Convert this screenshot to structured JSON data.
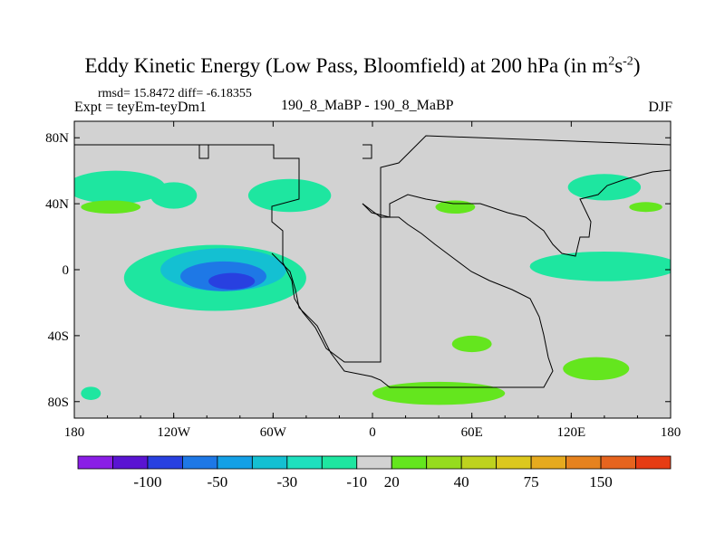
{
  "title": {
    "main": "Eddy Kinetic Energy (Low Pass, Bloomfield) at 200 hPa (in m",
    "sup1": "2",
    "mid": "s",
    "sup2": "-2",
    "end": ")"
  },
  "stats": "rmsd= 15.8472 diff= -6.18355",
  "expt_label": "Expt = teyEm-teyDm1",
  "center_label": "190_8_MaBP - 190_8_MaBP",
  "season_label": "DJF",
  "chart_data": {
    "type": "heatmap",
    "x_ticks": [
      {
        "value": -180,
        "label": "180"
      },
      {
        "value": -120,
        "label": "120W"
      },
      {
        "value": -60,
        "label": "60W"
      },
      {
        "value": 0,
        "label": "0"
      },
      {
        "value": 60,
        "label": "60E"
      },
      {
        "value": 120,
        "label": "120E"
      },
      {
        "value": 180,
        "label": "180"
      }
    ],
    "y_ticks": [
      {
        "value": 80,
        "label": "80N"
      },
      {
        "value": 40,
        "label": "40N"
      },
      {
        "value": 0,
        "label": "0"
      },
      {
        "value": -40,
        "label": "40S"
      },
      {
        "value": -80,
        "label": "80S"
      }
    ],
    "xlim": [
      -180,
      180
    ],
    "ylim": [
      -90,
      90
    ],
    "colorbar": {
      "colors": [
        "#8a1ee6",
        "#5a14d2",
        "#2840e0",
        "#1e78e6",
        "#14a0e6",
        "#14c0d2",
        "#1ee0be",
        "#1ee6a0",
        "#d2d2d2",
        "#64e61e",
        "#96dc1e",
        "#bed21e",
        "#dcc81e",
        "#e6aa1e",
        "#e6821e",
        "#e6641e",
        "#e63c14"
      ],
      "labels": [
        {
          "boundary": 2,
          "text": "-100"
        },
        {
          "boundary": 4,
          "text": "-50"
        },
        {
          "boundary": 6,
          "text": "-30"
        },
        {
          "boundary": 8,
          "text": "-10"
        },
        {
          "boundary": 9,
          "text": "20"
        },
        {
          "boundary": 11,
          "text": "40"
        },
        {
          "boundary": 13,
          "text": "75"
        },
        {
          "boundary": 15,
          "text": "150"
        }
      ]
    },
    "background_color": "#d2d2d2",
    "anomalies": [
      {
        "lon": -95,
        "lat": -5,
        "rx": 55,
        "ry": 20,
        "level": 1
      },
      {
        "lon": -90,
        "lat": 0,
        "rx": 38,
        "ry": 13,
        "level": 2
      },
      {
        "lon": -90,
        "lat": -4,
        "rx": 26,
        "ry": 9,
        "level": 3
      },
      {
        "lon": -85,
        "lat": -7,
        "rx": 14,
        "ry": 5,
        "level": 4
      },
      {
        "lon": -155,
        "lat": 50,
        "rx": 30,
        "ry": 10,
        "level": 1
      },
      {
        "lon": -120,
        "lat": 45,
        "rx": 14,
        "ry": 8,
        "level": 1
      },
      {
        "lon": -50,
        "lat": 45,
        "rx": 25,
        "ry": 10,
        "level": 1
      },
      {
        "lon": 140,
        "lat": 50,
        "rx": 22,
        "ry": 8,
        "level": 1
      },
      {
        "lon": 140,
        "lat": 2,
        "rx": 45,
        "ry": 9,
        "level": 1
      },
      {
        "lon": -170,
        "lat": -75,
        "rx": 6,
        "ry": 4,
        "level": 1
      },
      {
        "lon": 40,
        "lat": -75,
        "rx": 40,
        "ry": 7,
        "level": 5
      },
      {
        "lon": 60,
        "lat": -45,
        "rx": 12,
        "ry": 5,
        "level": 5
      },
      {
        "lon": 135,
        "lat": -60,
        "rx": 20,
        "ry": 7,
        "level": 5
      },
      {
        "lon": 50,
        "lat": 38,
        "rx": 12,
        "ry": 4,
        "level": 5
      },
      {
        "lon": -158,
        "lat": 38,
        "rx": 18,
        "ry": 4,
        "level": 5
      },
      {
        "lon": 165,
        "lat": 38,
        "rx": 10,
        "ry": 3,
        "level": 5
      }
    ]
  }
}
